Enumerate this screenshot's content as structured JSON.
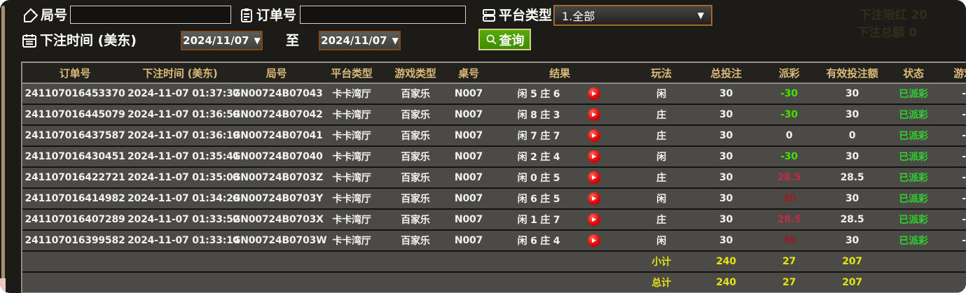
{
  "filters": {
    "round_label": "局号",
    "round_value": "",
    "order_label": "订单号",
    "order_value": "",
    "platform_label": "平台类型",
    "platform_value": "1.全部",
    "bettime_label": "下注时间 (美东)",
    "date_from": "2024/11/07",
    "date_to": "2024/11/07",
    "to_label": "至",
    "search_label": "查询",
    "dropdown_arrow": "▼"
  },
  "ghost": {
    "line1": "下注限红  20",
    "line2": "下注总额  0"
  },
  "table": {
    "columns": [
      "订单号",
      "下注时间 (美东)",
      "局号",
      "平台类型",
      "游戏类型",
      "桌号",
      "结果",
      "玩法",
      "总投注",
      "派彩",
      "有效投注额",
      "状态",
      "游戏"
    ],
    "rows": [
      {
        "order": "241107016453370",
        "time": "2024-11-07 01:37:37",
        "round": "GN00724B07043",
        "platform": "卡卡湾厅",
        "game": "百家乐",
        "table_no": "N007",
        "result": "闲 5 庄 6",
        "play": "闲",
        "total_bet": "30",
        "payout": "-30",
        "payout_color": "#45e000",
        "valid_bet": "30",
        "status": "已派彩",
        "extra": "-"
      },
      {
        "order": "241107016445079",
        "time": "2024-11-07 01:36:59",
        "round": "GN00724B07042",
        "platform": "卡卡湾厅",
        "game": "百家乐",
        "table_no": "N007",
        "result": "闲 8 庄 3",
        "play": "庄",
        "total_bet": "30",
        "payout": "-30",
        "payout_color": "#45e000",
        "valid_bet": "30",
        "status": "已派彩",
        "extra": "-"
      },
      {
        "order": "241107016437587",
        "time": "2024-11-07 01:36:19",
        "round": "GN00724B07041",
        "platform": "卡卡湾厅",
        "game": "百家乐",
        "table_no": "N007",
        "result": "闲 7 庄 7",
        "play": "庄",
        "total_bet": "30",
        "payout": "0",
        "payout_color": "#f2f2f2",
        "valid_bet": "0",
        "status": "已派彩",
        "extra": "-"
      },
      {
        "order": "241107016430451",
        "time": "2024-11-07 01:35:41",
        "round": "GN00724B07040",
        "platform": "卡卡湾厅",
        "game": "百家乐",
        "table_no": "N007",
        "result": "闲 2 庄 4",
        "play": "闲",
        "total_bet": "30",
        "payout": "-30",
        "payout_color": "#45e000",
        "valid_bet": "30",
        "status": "已派彩",
        "extra": "-"
      },
      {
        "order": "241107016422721",
        "time": "2024-11-07 01:35:03",
        "round": "GN00724B0703Z",
        "platform": "卡卡湾厅",
        "game": "百家乐",
        "table_no": "N007",
        "result": "闲 0 庄 5",
        "play": "庄",
        "total_bet": "30",
        "payout": "28.5",
        "payout_color": "#c22a45",
        "valid_bet": "28.5",
        "status": "已派彩",
        "extra": "-"
      },
      {
        "order": "241107016414982",
        "time": "2024-11-07 01:34:29",
        "round": "GN00724B0703Y",
        "platform": "卡卡湾厅",
        "game": "百家乐",
        "table_no": "N007",
        "result": "闲 6 庄 5",
        "play": "闲",
        "total_bet": "30",
        "payout": "30",
        "payout_color": "#9a1a28",
        "valid_bet": "30",
        "status": "已派彩",
        "extra": "-"
      },
      {
        "order": "241107016407289",
        "time": "2024-11-07 01:33:52",
        "round": "GN00724B0703X",
        "platform": "卡卡湾厅",
        "game": "百家乐",
        "table_no": "N007",
        "result": "闲 1 庄 7",
        "play": "庄",
        "total_bet": "30",
        "payout": "28.5",
        "payout_color": "#c22a45",
        "valid_bet": "28.5",
        "status": "已派彩",
        "extra": "-"
      },
      {
        "order": "241107016399582",
        "time": "2024-11-07 01:33:14",
        "round": "GN00724B0703W",
        "platform": "卡卡湾厅",
        "game": "百家乐",
        "table_no": "N007",
        "result": "闲 6 庄 4",
        "play": "闲",
        "total_bet": "30",
        "payout": "30",
        "payout_color": "#9a1a28",
        "valid_bet": "30",
        "status": "已派彩",
        "extra": "-"
      }
    ],
    "subtotal": {
      "label": "小计",
      "total_bet": "240",
      "payout": "27",
      "valid_bet": "207"
    },
    "total": {
      "label": "总计",
      "total_bet": "240",
      "payout": "27",
      "valid_bet": "207"
    }
  },
  "colors": {
    "window_bg": "#1c1b18",
    "row_bg": "#4b4a47",
    "header_bg": "#23221e",
    "header_text": "#d9ba7a",
    "status_green": "#2fd030",
    "summary_yellow": "#e6e312",
    "payout_negative_green": "#45e000",
    "payout_positive_red": "#c22a45",
    "button_green": "#4a9b04",
    "date_border_brown": "#7c4b1d",
    "dropdown_border_orange": "#a2672c"
  }
}
